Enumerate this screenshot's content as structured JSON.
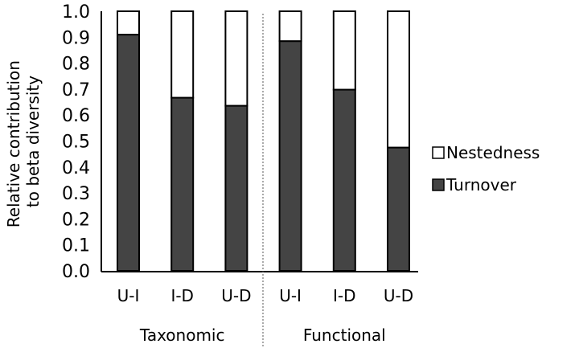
{
  "chart_data": {
    "type": "bar",
    "stacked": true,
    "title": "",
    "ylabel": "Relative contribution to beta diversity",
    "ylabel_lines": [
      "Relative contribution",
      "to beta diversity"
    ],
    "xlabel": "",
    "ylim": [
      0,
      1.0
    ],
    "yticks": [
      "0.0",
      "0.1",
      "0.2",
      "0.3",
      "0.4",
      "0.5",
      "0.6",
      "0.7",
      "0.8",
      "0.9",
      "1.0"
    ],
    "categories": [
      "U-I",
      "I-D",
      "U-D",
      "U-I",
      "I-D",
      "U-D"
    ],
    "groups": [
      {
        "label": "Taxonomic",
        "count": 3
      },
      {
        "label": "Functional",
        "count": 3
      }
    ],
    "series": [
      {
        "name": "Turnover",
        "color": "#444444",
        "values": [
          0.91,
          0.667,
          0.636,
          0.885,
          0.698,
          0.475
        ]
      },
      {
        "name": "Nestedness",
        "color": "#ffffff",
        "values": [
          0.09,
          0.333,
          0.364,
          0.115,
          0.302,
          0.525
        ]
      }
    ],
    "legend": {
      "position": "right",
      "entries": [
        "Nestedness",
        "Turnover"
      ]
    },
    "grid": false
  }
}
